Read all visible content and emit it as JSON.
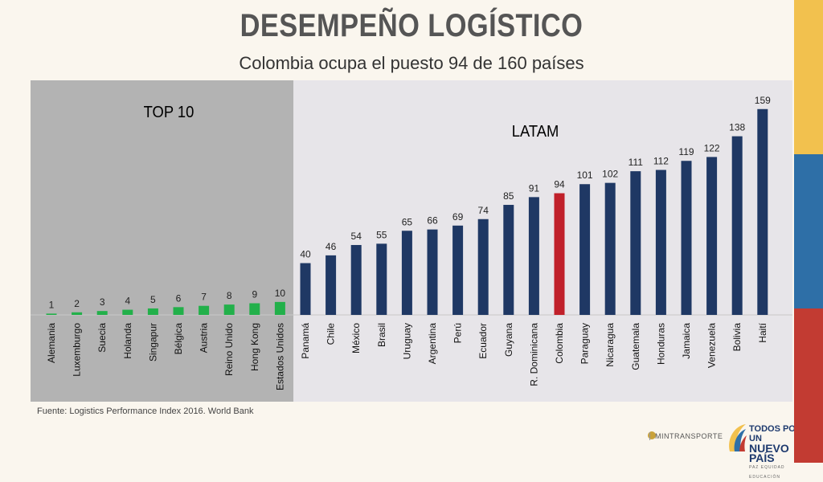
{
  "title": "DESEMPEÑO LOGÍSTICO",
  "subtitle": "Colombia ocupa el puesto 94 de 160 países",
  "source": "Fuente: Logistics Performance Index 2016. World Bank",
  "footer": {
    "ministry": "MINTRANSPORTE",
    "brand_line1": "TODOS POR UN",
    "brand_line2": "NUEVO PAÍS",
    "brand_sub": "PAZ   EQUIDAD   EDUCACIÓN"
  },
  "colors": {
    "top10": "#22b04a",
    "latam": "#1f3864",
    "highlight": "#c0202a",
    "top10_bg": "#b3b3b3",
    "latam_bg": "#e7e5e9",
    "stripes": [
      "#f2c14e",
      "#2e6fa7",
      "#c23b32"
    ]
  },
  "chart_data": {
    "type": "bar",
    "ylabel": "",
    "xlabel": "",
    "ylim": [
      0,
      175
    ],
    "groups": [
      {
        "name": "TOP 10",
        "categories": [
          "Alemania",
          "Luxemburgo",
          "Suecia",
          "Holanda",
          "Singapur",
          "Bélgica",
          "Austria",
          "Reino Unido",
          "Hong Kong",
          "Estados Unidos"
        ],
        "values": [
          1,
          2,
          3,
          4,
          5,
          6,
          7,
          8,
          9,
          10
        ]
      },
      {
        "name": "LATAM",
        "categories": [
          "Panamá",
          "Chile",
          "México",
          "Brasil",
          "Uruguay",
          "Argentina",
          "Perú",
          "Ecuador",
          "Guyana",
          "R. Dominicana",
          "Colombia",
          "Paraguay",
          "Nicaragua",
          "Guatemala",
          "Honduras",
          "Jamaica",
          "Venezuela",
          "Bolivia",
          "Haití"
        ],
        "values": [
          40,
          46,
          54,
          55,
          65,
          66,
          69,
          74,
          85,
          91,
          94,
          101,
          102,
          111,
          112,
          119,
          122,
          138,
          159
        ]
      }
    ],
    "highlight": "Colombia"
  }
}
